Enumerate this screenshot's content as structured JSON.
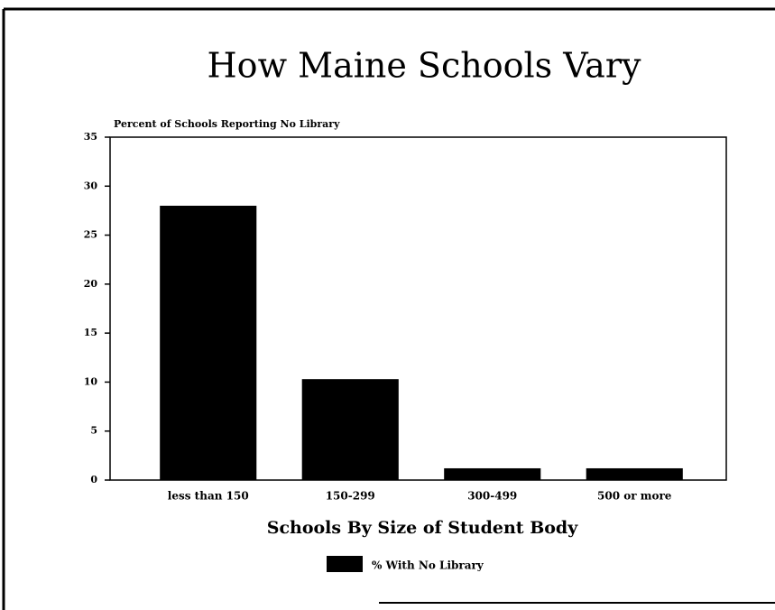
{
  "chart_data": {
    "type": "bar",
    "title": "How Maine Schools Vary",
    "y_label": "Percent of Schools Reporting No Library",
    "x_label": "Schools By Size of Student Body",
    "categories": [
      "less than 150",
      "150-299",
      "300-499",
      "500 or more"
    ],
    "series": [
      {
        "name": "% With No Library",
        "color": "#000000",
        "values": [
          28,
          10.3,
          1.2,
          1.2
        ]
      }
    ],
    "ylim": [
      0,
      35
    ],
    "yticks": [
      0,
      5,
      10,
      15,
      20,
      25,
      30,
      35
    ],
    "legend": "bottom",
    "grid": false
  }
}
